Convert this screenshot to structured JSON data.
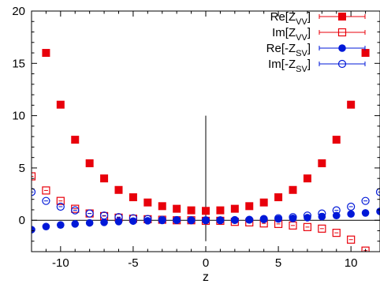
{
  "chart_data": {
    "type": "scatter",
    "xlabel": "z",
    "ylabel": "",
    "xlim": [
      -12,
      12
    ],
    "ylim": [
      -3,
      20
    ],
    "xticks": [
      -10,
      -5,
      0,
      5,
      10
    ],
    "yticks": [
      0,
      5,
      10,
      15,
      20
    ],
    "xtick_labels": [
      "-10",
      "-5",
      "0",
      "5",
      "10"
    ],
    "ytick_labels": [
      "0",
      "5",
      "10",
      "15",
      "20"
    ],
    "grid": false,
    "legend_position": "top-right",
    "reference_lines": [
      {
        "orientation": "horizontal",
        "y": 0
      },
      {
        "orientation": "vertical",
        "x": 0,
        "from": -2,
        "to": 10
      }
    ],
    "series": [
      {
        "name": "Re[Z_VV]",
        "legend_main": "Re[Z",
        "legend_sub": "VV",
        "legend_tail": "]",
        "color": "#e8000b",
        "marker": "filled-square",
        "points": [
          [
            -11,
            16
          ],
          [
            -10,
            11.05
          ],
          [
            -9,
            7.7
          ],
          [
            -8,
            5.45
          ],
          [
            -7,
            4.0
          ],
          [
            -6,
            2.9
          ],
          [
            -5,
            2.2
          ],
          [
            -4,
            1.7
          ],
          [
            -3,
            1.35
          ],
          [
            -2,
            1.1
          ],
          [
            -1,
            0.95
          ],
          [
            0,
            0.9
          ],
          [
            1,
            0.95
          ],
          [
            2,
            1.1
          ],
          [
            3,
            1.35
          ],
          [
            4,
            1.7
          ],
          [
            5,
            2.2
          ],
          [
            6,
            2.9
          ],
          [
            7,
            4.0
          ],
          [
            8,
            5.45
          ],
          [
            9,
            7.7
          ],
          [
            10,
            11.05
          ],
          [
            11,
            16
          ]
        ]
      },
      {
        "name": "Im[Z_VV]",
        "legend_main": "Im[Z",
        "legend_sub": "VV",
        "legend_tail": "]",
        "color": "#e8000b",
        "marker": "open-square",
        "points": [
          [
            -12,
            4.2
          ],
          [
            -11,
            2.85
          ],
          [
            -10,
            1.85
          ],
          [
            -9,
            1.1
          ],
          [
            -8,
            0.65
          ],
          [
            -7,
            0.4
          ],
          [
            -6,
            0.25
          ],
          [
            -5,
            0.15
          ],
          [
            -4,
            0.1
          ],
          [
            -3,
            0.05
          ],
          [
            -2,
            0.0
          ],
          [
            -1,
            0.0
          ],
          [
            0,
            -0.05
          ],
          [
            1,
            -0.05
          ],
          [
            2,
            -0.15
          ],
          [
            3,
            -0.2
          ],
          [
            4,
            -0.3
          ],
          [
            5,
            -0.35
          ],
          [
            6,
            -0.5
          ],
          [
            7,
            -0.65
          ],
          [
            8,
            -0.8
          ],
          [
            9,
            -1.2
          ],
          [
            10,
            -1.85
          ],
          [
            11,
            -2.9
          ]
        ]
      },
      {
        "name": "Re[-Z_SV]",
        "legend_main": "Re[-Z",
        "legend_sub": "SV",
        "legend_tail": "]",
        "color": "#0018d8",
        "marker": "filled-circle",
        "points": [
          [
            -12,
            -0.9
          ],
          [
            -11,
            -0.6
          ],
          [
            -10,
            -0.45
          ],
          [
            -9,
            -0.35
          ],
          [
            -8,
            -0.25
          ],
          [
            -7,
            -0.2
          ],
          [
            -6,
            -0.12
          ],
          [
            -5,
            -0.08
          ],
          [
            -4,
            -0.05
          ],
          [
            -3,
            -0.02
          ],
          [
            -2,
            0.0
          ],
          [
            -1,
            0.0
          ],
          [
            0,
            0.0
          ],
          [
            1,
            0.0
          ],
          [
            2,
            0.02
          ],
          [
            3,
            0.05
          ],
          [
            4,
            0.08
          ],
          [
            5,
            0.12
          ],
          [
            6,
            0.18
          ],
          [
            7,
            0.25
          ],
          [
            8,
            0.35
          ],
          [
            9,
            0.45
          ],
          [
            10,
            0.6
          ],
          [
            11,
            0.7
          ],
          [
            12,
            0.85
          ]
        ]
      },
      {
        "name": "Im[-Z_SV]",
        "legend_main": "Im[-Z",
        "legend_sub": "SV",
        "legend_tail": "]",
        "color": "#0018d8",
        "marker": "open-circle",
        "points": [
          [
            -12,
            2.7
          ],
          [
            -11,
            1.85
          ],
          [
            -10,
            1.3
          ],
          [
            -9,
            0.95
          ],
          [
            -8,
            0.65
          ],
          [
            -7,
            0.45
          ],
          [
            -6,
            0.3
          ],
          [
            -5,
            0.2
          ],
          [
            -4,
            0.12
          ],
          [
            -3,
            0.05
          ],
          [
            -2,
            0.02
          ],
          [
            -1,
            0.0
          ],
          [
            0,
            0.0
          ],
          [
            1,
            0.0
          ],
          [
            2,
            0.02
          ],
          [
            3,
            0.05
          ],
          [
            4,
            0.12
          ],
          [
            5,
            0.2
          ],
          [
            6,
            0.3
          ],
          [
            7,
            0.45
          ],
          [
            8,
            0.65
          ],
          [
            9,
            0.95
          ],
          [
            10,
            1.3
          ],
          [
            11,
            1.85
          ],
          [
            12,
            2.7
          ]
        ]
      }
    ]
  }
}
